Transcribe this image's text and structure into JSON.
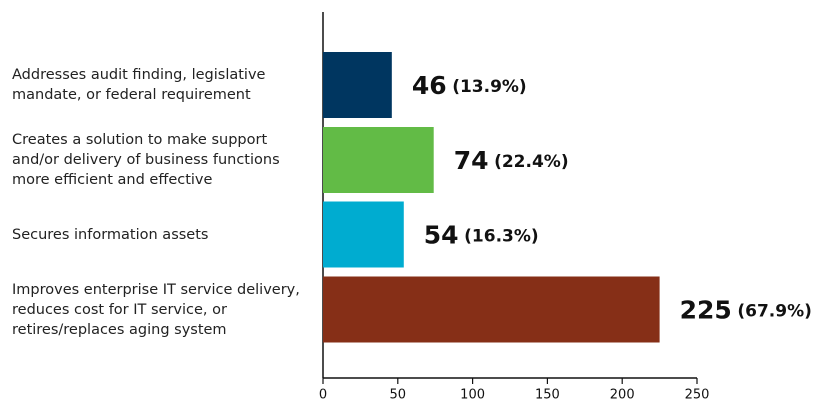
{
  "chart_data": {
    "type": "bar",
    "orientation": "horizontal",
    "categories": [
      "Addresses audit finding, legislative mandate, or federal requirement",
      "Creates a solution to make support and/or delivery of business functions more efficient and effective",
      "Secures information assets",
      "Improves enterprise IT service delivery, reduces cost for IT service, or retires/replaces aging system"
    ],
    "values": [
      46,
      74,
      54,
      225
    ],
    "share_labels": [
      "(13.9%)",
      "(22.4%)",
      "(16.3%)",
      "(67.9%)"
    ],
    "colors": [
      "#003660",
      "#62bb46",
      "#00acd0",
      "#862f17"
    ],
    "xlim": [
      0,
      250
    ],
    "xticks": [
      0,
      50,
      100,
      150,
      200,
      250
    ],
    "grid": false
  }
}
